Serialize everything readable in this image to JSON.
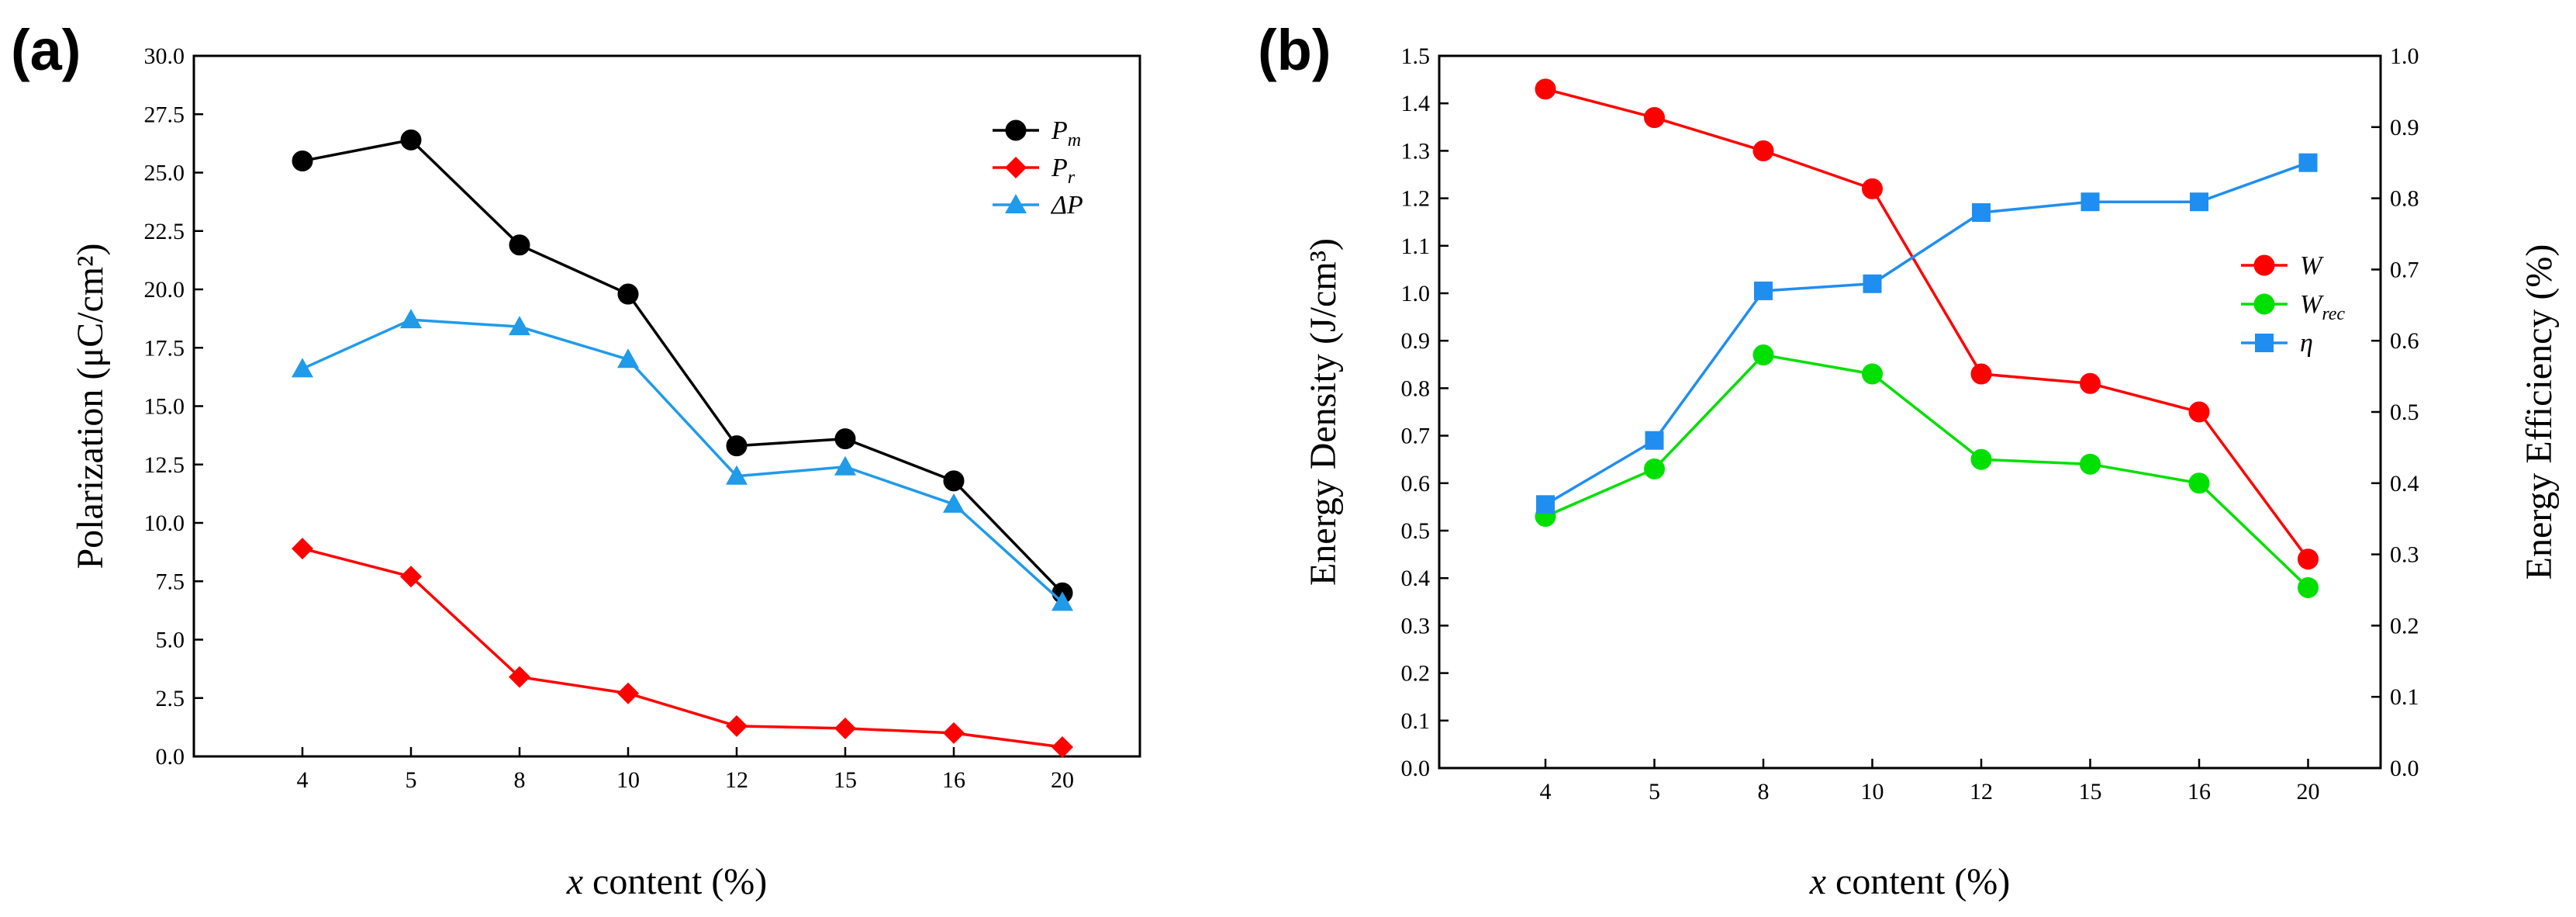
{
  "chart_data": [
    {
      "panel": "(a)",
      "type": "line",
      "categories": [
        "4",
        "5",
        "8",
        "10",
        "12",
        "15",
        "16",
        "20"
      ],
      "xlabel_italic": "x",
      "xlabel_rest": " content (%)",
      "ylabel": "Polarization (μC/cm²)",
      "ylim": [
        0,
        30
      ],
      "yticks": [
        "0.0",
        "2.5",
        "5.0",
        "7.5",
        "10.0",
        "12.5",
        "15.0",
        "17.5",
        "20.0",
        "22.5",
        "25.0",
        "27.5",
        "30.0"
      ],
      "series": [
        {
          "name": "Pm",
          "label_main": "P",
          "label_sub": "m",
          "color": "#000000",
          "marker": "circle",
          "axis": "left",
          "values": [
            25.5,
            26.4,
            21.9,
            19.8,
            13.3,
            13.6,
            11.8,
            7.0
          ]
        },
        {
          "name": "Pr",
          "label_main": "P",
          "label_sub": "r",
          "color": "#ff0000",
          "marker": "diamond",
          "axis": "left",
          "values": [
            8.9,
            7.7,
            3.4,
            2.7,
            1.3,
            1.2,
            1.0,
            0.4
          ]
        },
        {
          "name": "ΔP",
          "label_main": "ΔP",
          "label_sub": "",
          "color": "#1f9bea",
          "marker": "triangle",
          "axis": "left",
          "values": [
            16.6,
            18.7,
            18.4,
            17.0,
            12.0,
            12.4,
            10.8,
            6.6
          ]
        }
      ],
      "legend_position": "top-right"
    },
    {
      "panel": "(b)",
      "type": "line",
      "categories": [
        "4",
        "5",
        "8",
        "10",
        "12",
        "15",
        "16",
        "20"
      ],
      "xlabel_italic": "x",
      "xlabel_rest": " content (%)",
      "ylabel": "Energy Density (J/cm³)",
      "ylabel_right": "Energy Efficiency (%)",
      "ylim": [
        0,
        1.5
      ],
      "ylim_right": [
        0,
        1.0
      ],
      "yticks": [
        "0.0",
        "0.1",
        "0.2",
        "0.3",
        "0.4",
        "0.5",
        "0.6",
        "0.7",
        "0.8",
        "0.9",
        "1.0",
        "1.1",
        "1.2",
        "1.3",
        "1.4",
        "1.5"
      ],
      "yticks_right": [
        "0.0",
        "0.1",
        "0.2",
        "0.3",
        "0.4",
        "0.5",
        "0.6",
        "0.7",
        "0.8",
        "0.9",
        "1.0"
      ],
      "series": [
        {
          "name": "W",
          "label_main": "W",
          "label_sub": "",
          "color": "#ff0000",
          "marker": "circle",
          "axis": "left",
          "values": [
            1.43,
            1.37,
            1.3,
            1.22,
            0.83,
            0.81,
            0.75,
            0.44
          ]
        },
        {
          "name": "Wrec",
          "label_main": "W",
          "label_sub": "rec",
          "color": "#00e000",
          "marker": "circle",
          "axis": "left",
          "values": [
            0.53,
            0.63,
            0.87,
            0.83,
            0.65,
            0.64,
            0.6,
            0.38
          ]
        },
        {
          "name": "η",
          "label_main": "η",
          "label_sub": "",
          "color": "#1f8ef0",
          "marker": "square",
          "axis": "right",
          "values": [
            0.37,
            0.46,
            0.67,
            0.68,
            0.78,
            0.795,
            0.795,
            0.85
          ]
        }
      ],
      "legend_position": "right"
    }
  ]
}
